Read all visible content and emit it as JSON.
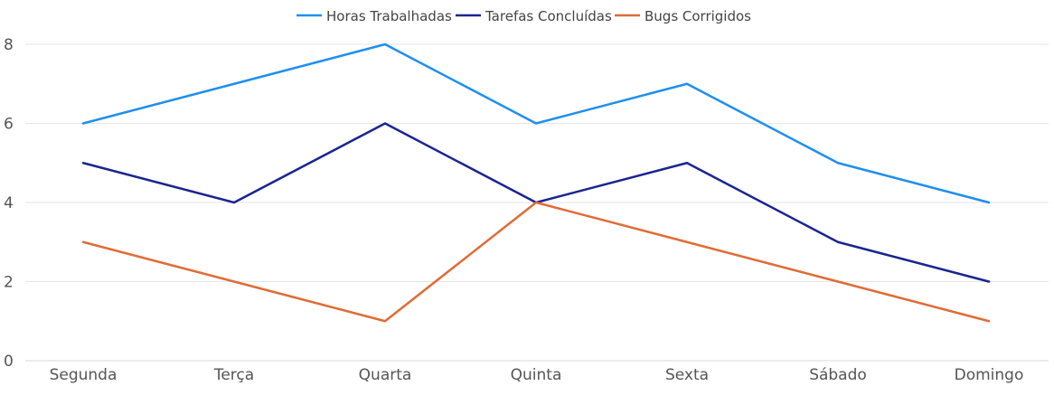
{
  "chart_data": {
    "type": "line",
    "categories": [
      "Segunda",
      "Terça",
      "Quarta",
      "Quinta",
      "Sexta",
      "Sábado",
      "Domingo"
    ],
    "series": [
      {
        "name": "Horas Trabalhadas",
        "color": "#1e8ff0",
        "values": [
          6,
          7,
          8,
          6,
          7,
          5,
          4
        ]
      },
      {
        "name": "Tarefas Concluídas",
        "color": "#1a2590",
        "values": [
          5,
          4,
          6,
          4,
          5,
          3,
          2
        ]
      },
      {
        "name": "Bugs Corrigidos",
        "color": "#e06c36",
        "values": [
          3,
          2,
          1,
          4,
          3,
          2,
          1
        ]
      }
    ],
    "ylim": [
      0,
      8
    ],
    "yticks": [
      0,
      2,
      4,
      6,
      8
    ],
    "grid": true,
    "legend_position": "top-center"
  }
}
